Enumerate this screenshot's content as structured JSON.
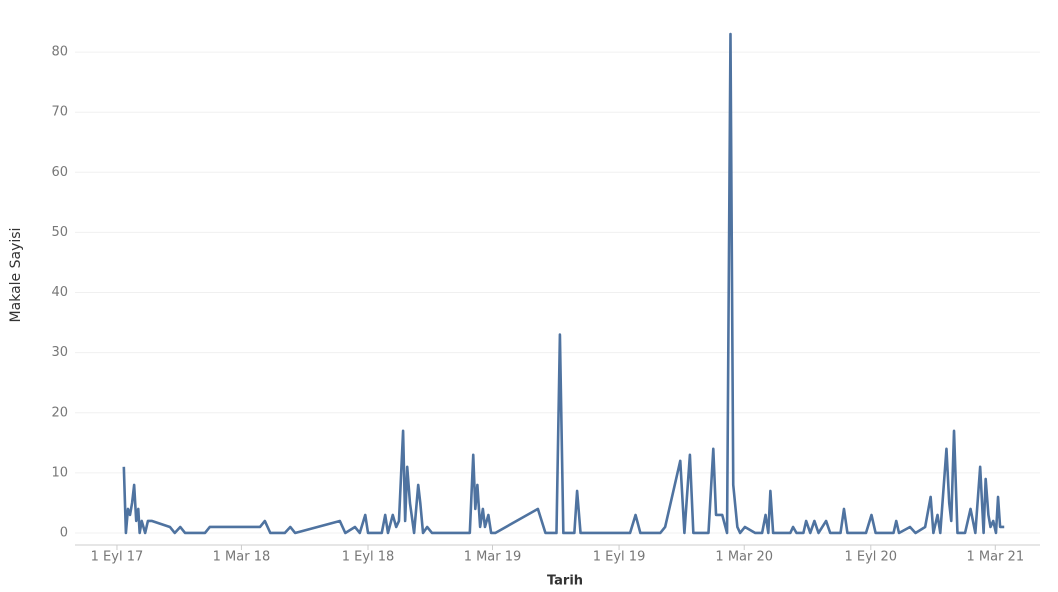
{
  "chart_data": {
    "type": "line",
    "x_label": "Tarih",
    "y_label": "Makale Sayisi",
    "x": [
      "2017-09-11",
      "2017-09-14",
      "2017-09-17",
      "2017-09-20",
      "2017-09-23",
      "2017-09-26",
      "2017-09-29",
      "2017-10-02",
      "2017-10-04",
      "2017-10-07",
      "2017-10-12",
      "2017-10-16",
      "2017-10-22",
      "2017-11-17",
      "2017-11-24",
      "2017-12-02",
      "2017-12-09",
      "2018-01-07",
      "2018-01-14",
      "2018-03-28",
      "2018-04-04",
      "2018-04-12",
      "2018-05-03",
      "2018-05-11",
      "2018-05-18",
      "2018-07-22",
      "2018-07-30",
      "2018-08-13",
      "2018-08-20",
      "2018-08-28",
      "2018-09-01",
      "2018-09-21",
      "2018-09-26",
      "2018-09-30",
      "2018-10-07",
      "2018-10-12",
      "2018-10-16",
      "2018-10-22",
      "2018-10-25",
      "2018-10-28",
      "2018-11-01",
      "2018-11-07",
      "2018-11-13",
      "2018-11-16",
      "2018-11-20",
      "2018-11-26",
      "2018-12-03",
      "2019-01-27",
      "2019-02-01",
      "2019-02-04",
      "2019-02-07",
      "2019-02-11",
      "2019-02-15",
      "2019-02-18",
      "2019-02-23",
      "2019-02-27",
      "2019-03-05",
      "2019-05-06",
      "2019-05-17",
      "2019-06-02",
      "2019-06-07",
      "2019-06-12",
      "2019-06-28",
      "2019-07-02",
      "2019-07-07",
      "2019-09-17",
      "2019-09-25",
      "2019-10-02",
      "2019-10-31",
      "2019-11-07",
      "2019-11-29",
      "2019-12-05",
      "2019-12-13",
      "2019-12-18",
      "2020-01-09",
      "2020-01-16",
      "2020-01-20",
      "2020-01-29",
      "2020-02-05",
      "2020-02-10",
      "2020-02-14",
      "2020-02-20",
      "2020-02-24",
      "2020-03-02",
      "2020-03-17",
      "2020-03-27",
      "2020-04-01",
      "2020-04-05",
      "2020-04-08",
      "2020-04-12",
      "2020-05-07",
      "2020-05-11",
      "2020-05-16",
      "2020-05-26",
      "2020-05-30",
      "2020-06-05",
      "2020-06-11",
      "2020-06-17",
      "2020-06-28",
      "2020-07-04",
      "2020-07-19",
      "2020-07-24",
      "2020-07-29",
      "2020-08-25",
      "2020-09-02",
      "2020-09-08",
      "2020-10-04",
      "2020-10-08",
      "2020-10-12",
      "2020-10-28",
      "2020-11-05",
      "2020-11-19",
      "2020-11-27",
      "2020-12-01",
      "2020-12-07",
      "2020-12-11",
      "2020-12-20",
      "2020-12-24",
      "2020-12-27",
      "2020-12-31",
      "2021-01-05",
      "2021-01-16",
      "2021-01-24",
      "2021-01-31",
      "2021-02-07",
      "2021-02-12",
      "2021-02-15",
      "2021-02-19",
      "2021-02-22",
      "2021-02-26",
      "2021-03-02",
      "2021-03-05",
      "2021-03-08",
      "2021-03-14"
    ],
    "values": [
      11,
      0,
      4,
      3,
      5,
      8,
      2,
      4,
      0,
      2,
      0,
      2,
      2,
      1,
      0,
      1,
      0,
      0,
      1,
      1,
      2,
      0,
      0,
      1,
      0,
      2,
      0,
      1,
      0,
      3,
      0,
      0,
      3,
      0,
      3,
      1,
      2,
      17,
      2,
      11,
      5,
      0,
      8,
      5,
      0,
      1,
      0,
      0,
      13,
      4,
      8,
      1,
      4,
      1,
      3,
      0,
      0,
      4,
      0,
      0,
      33,
      0,
      0,
      7,
      0,
      0,
      3,
      0,
      0,
      1,
      12,
      0,
      13,
      0,
      0,
      14,
      3,
      3,
      0,
      83,
      8,
      1,
      0,
      1,
      0,
      0,
      3,
      0,
      7,
      0,
      0,
      1,
      0,
      0,
      2,
      0,
      2,
      0,
      2,
      0,
      0,
      4,
      0,
      0,
      3,
      0,
      0,
      2,
      0,
      1,
      0,
      1,
      6,
      0,
      3,
      0,
      14,
      5,
      2,
      17,
      0,
      0,
      4,
      0,
      11,
      0,
      9,
      3,
      1,
      2,
      0,
      6,
      1,
      1
    ],
    "color": "#4f73a0",
    "xlim": [
      "2017-07-02",
      "2021-05-05"
    ],
    "xticks": [
      {
        "value": "2017-09-01",
        "label": "1 Eyl 17"
      },
      {
        "value": "2018-03-01",
        "label": "1 Mar 18"
      },
      {
        "value": "2018-09-01",
        "label": "1 Eyl 18"
      },
      {
        "value": "2019-03-01",
        "label": "1 Mar 19"
      },
      {
        "value": "2019-09-01",
        "label": "1 Eyl 19"
      },
      {
        "value": "2020-03-01",
        "label": "1 Mar 20"
      },
      {
        "value": "2020-09-01",
        "label": "1 Eyl 20"
      },
      {
        "value": "2021-03-01",
        "label": "1 Mar 21"
      }
    ],
    "ylim": [
      -2,
      87
    ],
    "yticks": [
      0,
      10,
      20,
      30,
      40,
      50,
      60,
      70,
      80
    ],
    "grid": true
  }
}
